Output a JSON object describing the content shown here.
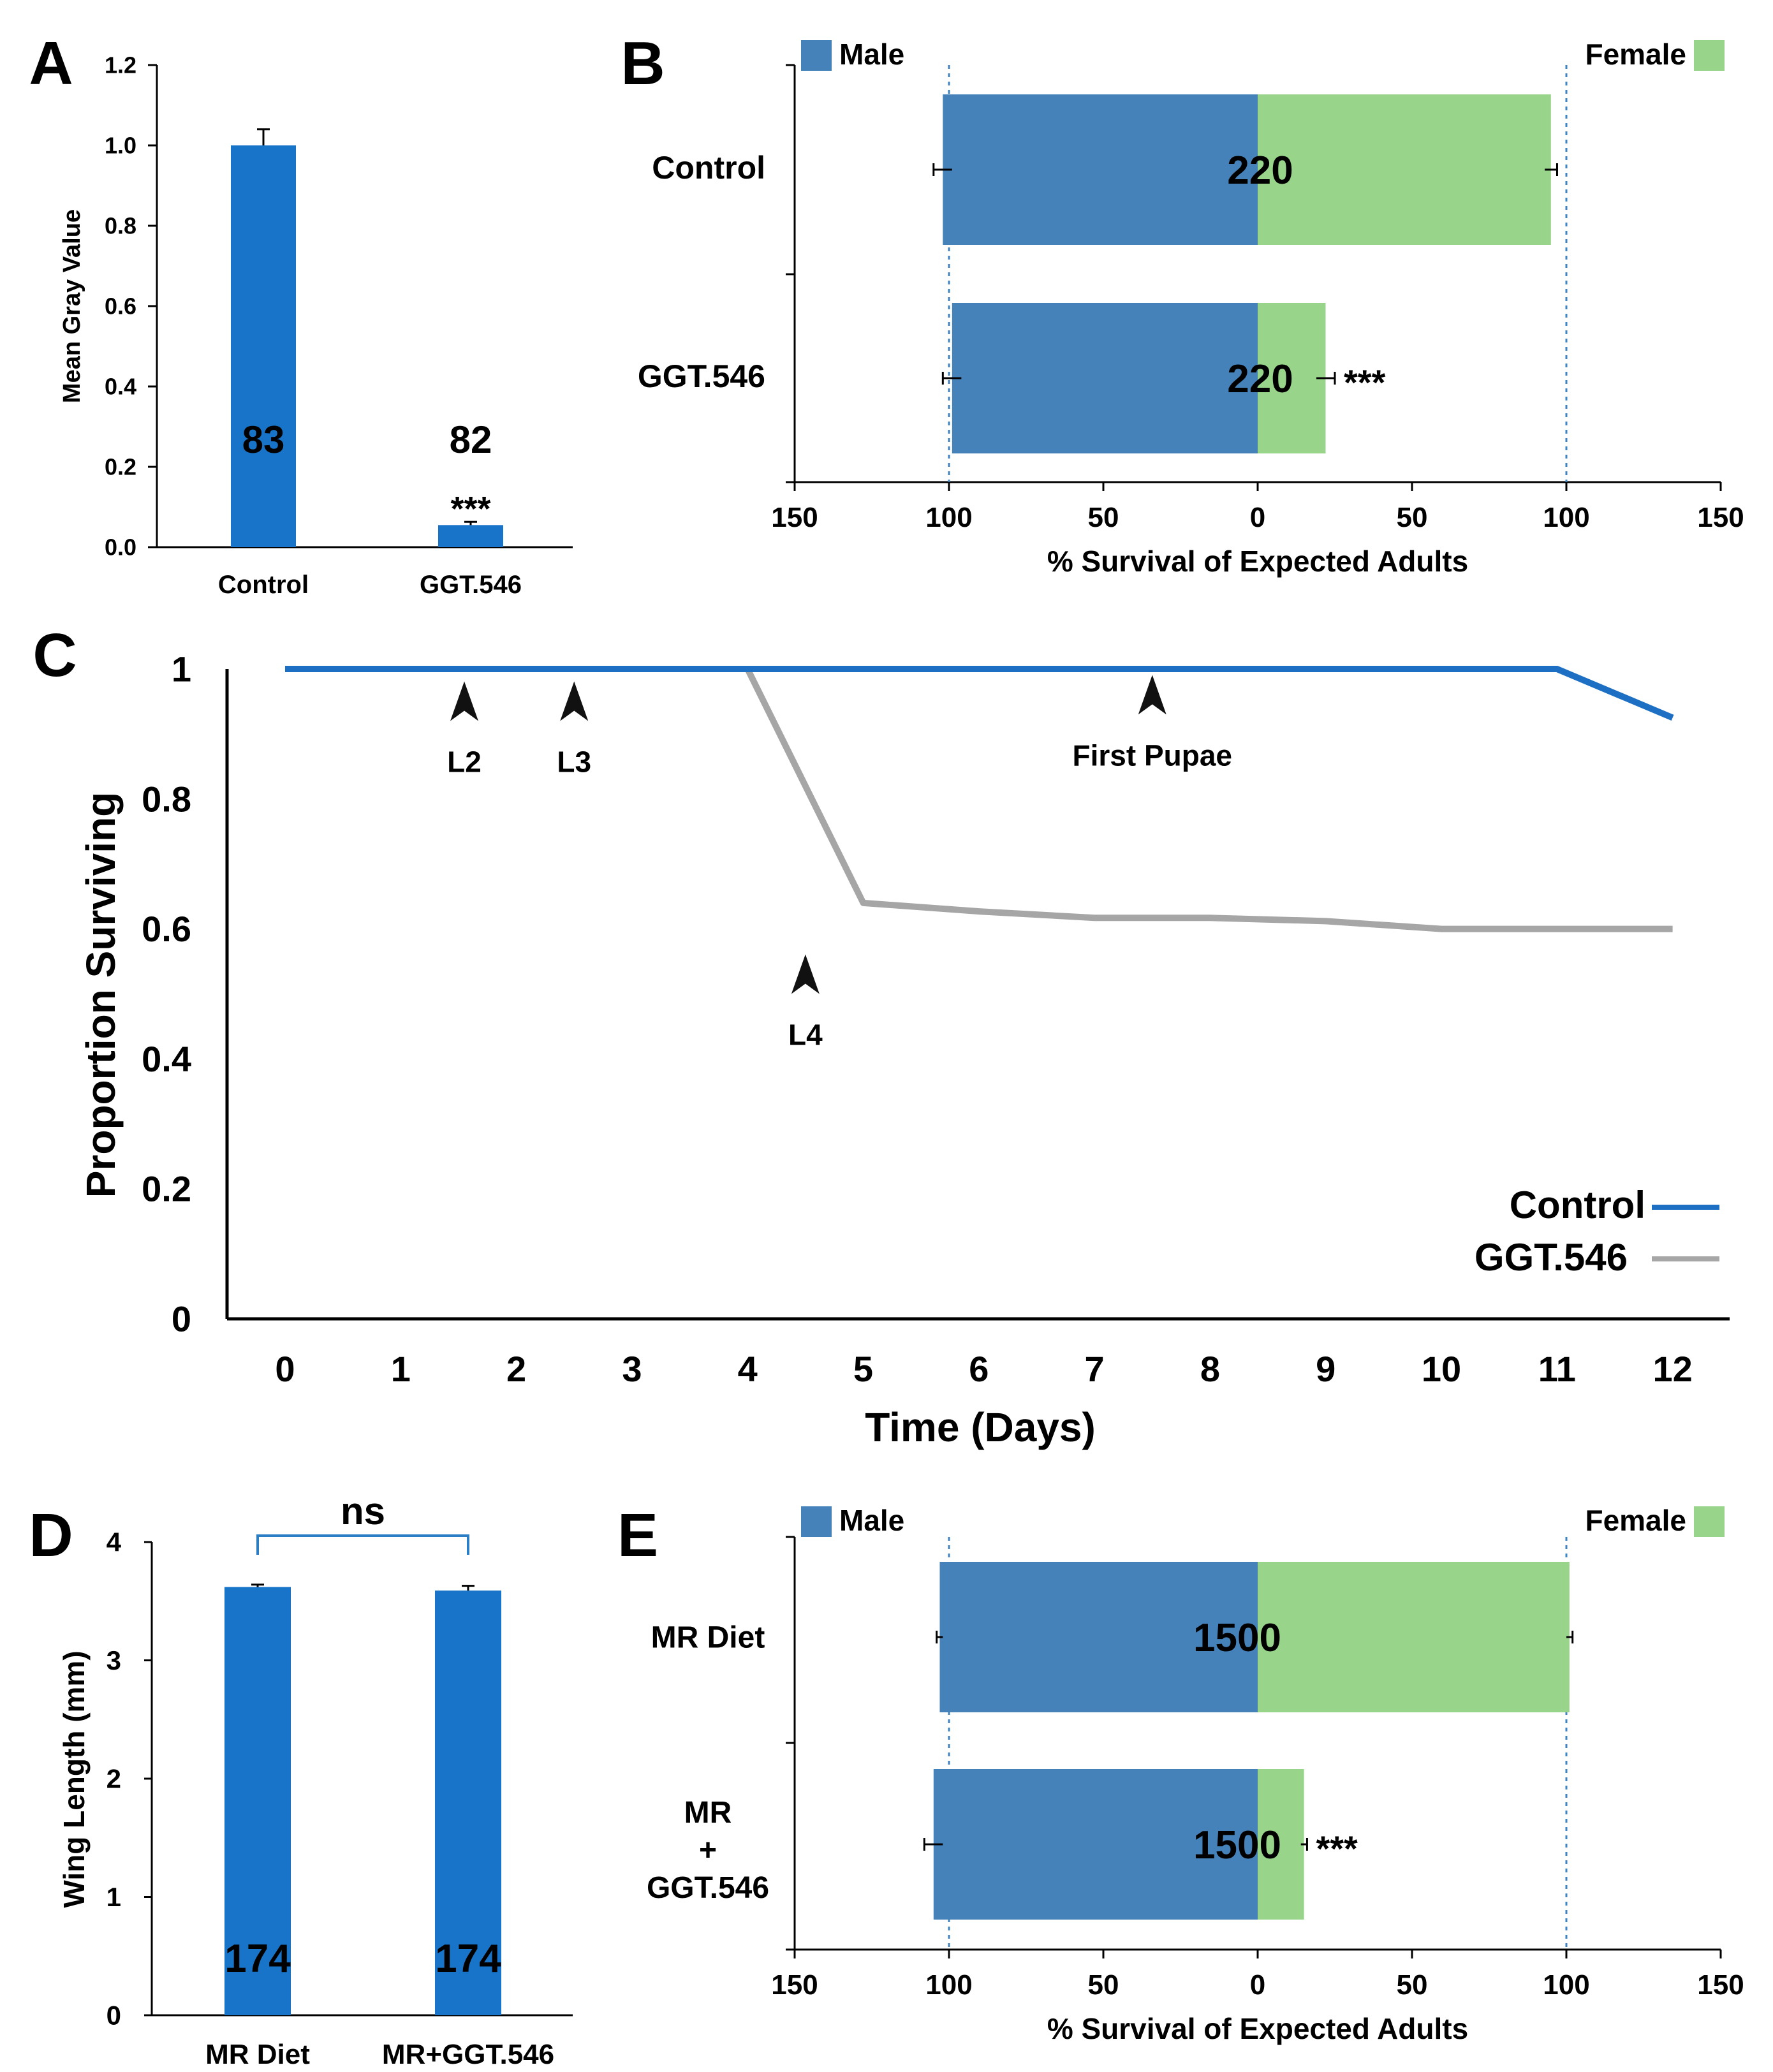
{
  "colors": {
    "bar_blue": "#1874c8",
    "male": "#4682ba",
    "female": "#98d48a",
    "control_line": "#1c6fc2",
    "ggt_line": "#a6a6a6",
    "dash": "#3f83c0",
    "bracket": "#2b7dc4"
  },
  "chart_data": [
    {
      "id": "A",
      "type": "bar",
      "panel_label": "A",
      "categories": [
        "Control",
        "GGT.546"
      ],
      "values": [
        1.0,
        0.055
      ],
      "errors": [
        0.04,
        0.008
      ],
      "n_labels": [
        "83",
        "82"
      ],
      "significance": [
        "",
        "***"
      ],
      "ylabel": "Mean Gray Value",
      "xlabel": "",
      "ylim": [
        0,
        1.2
      ],
      "yticks": [
        "0.0",
        "0.2",
        "0.4",
        "0.6",
        "0.8",
        "1.0",
        "1.2"
      ]
    },
    {
      "id": "B",
      "type": "bar",
      "orientation": "horizontal-diverging",
      "panel_label": "B",
      "categories": [
        "Control",
        "GGT.546"
      ],
      "series": [
        {
          "name": "Male",
          "values": [
            102,
            99
          ],
          "errors": [
            3,
            3
          ]
        },
        {
          "name": "Female",
          "values": [
            95,
            22
          ],
          "errors": [
            2,
            3
          ]
        }
      ],
      "n_labels": [
        "220",
        "220"
      ],
      "significance": [
        "",
        "***"
      ],
      "legend": [
        "Male",
        "Female"
      ],
      "reference_lines": [
        -100,
        100
      ],
      "xlabel": "% Survival of Expected Adults",
      "xlim": [
        -150,
        150
      ],
      "xticks": [
        "150",
        "100",
        "50",
        "0",
        "50",
        "100",
        "150"
      ]
    },
    {
      "id": "C",
      "type": "line",
      "panel_label": "C",
      "x": [
        0,
        1,
        2,
        3,
        4,
        5,
        6,
        7,
        8,
        9,
        10,
        11,
        12
      ],
      "series": [
        {
          "name": "Control",
          "values": [
            1,
            1,
            1,
            1,
            1,
            1,
            1,
            1,
            1,
            1,
            1,
            1,
            0.925
          ]
        },
        {
          "name": "GGT.546",
          "values": [
            1,
            1,
            1,
            1,
            1,
            0.64,
            0.627,
            0.617,
            0.617,
            0.612,
            0.6,
            0.6,
            0.6
          ]
        }
      ],
      "annotations": [
        {
          "label": "L2",
          "x": 1.55,
          "y": 0.92
        },
        {
          "label": "L3",
          "x": 2.5,
          "y": 0.92
        },
        {
          "label": "L4",
          "x": 4.5,
          "y": 0.5
        },
        {
          "label": "First Pupae",
          "x": 7.5,
          "y": 0.93
        }
      ],
      "xlabel": "Time (Days)",
      "ylabel": "Proportion Surviving",
      "xlim": [
        0,
        12
      ],
      "ylim": [
        0,
        1
      ],
      "xticks": [
        "0",
        "1",
        "2",
        "3",
        "4",
        "5",
        "6",
        "7",
        "8",
        "9",
        "10",
        "11",
        "12"
      ],
      "yticks": [
        "0",
        "0.2",
        "0.4",
        "0.6",
        "0.8",
        "1"
      ],
      "legend": [
        "Control",
        "GGT.546"
      ]
    },
    {
      "id": "D",
      "type": "bar",
      "panel_label": "D",
      "categories": [
        "MR Diet",
        "MR+GGT.546"
      ],
      "values": [
        3.62,
        3.59
      ],
      "errors": [
        0.02,
        0.04
      ],
      "n_labels": [
        "174",
        "174"
      ],
      "comparison": "ns",
      "ylabel": "Wing Length (mm)",
      "ylim": [
        0,
        4
      ],
      "yticks": [
        "0",
        "1",
        "2",
        "3",
        "4"
      ]
    },
    {
      "id": "E",
      "type": "bar",
      "orientation": "horizontal-diverging",
      "panel_label": "E",
      "categories": [
        "MR Diet",
        "MR + GGT.546"
      ],
      "category_lines": [
        [
          "MR Diet"
        ],
        [
          "MR",
          "+",
          "GGT.546"
        ]
      ],
      "series": [
        {
          "name": "Male",
          "values": [
            103,
            105
          ],
          "errors": [
            1,
            3
          ]
        },
        {
          "name": "Female",
          "values": [
            101,
            15
          ],
          "errors": [
            1,
            1
          ]
        }
      ],
      "n_labels": [
        "1500",
        "1500"
      ],
      "significance": [
        "",
        "***"
      ],
      "legend": [
        "Male",
        "Female"
      ],
      "reference_lines": [
        -100,
        100
      ],
      "xlabel": "% Survival of Expected Adults",
      "xlim": [
        -150,
        150
      ],
      "xticks": [
        "150",
        "100",
        "50",
        "0",
        "50",
        "100",
        "150"
      ]
    }
  ]
}
